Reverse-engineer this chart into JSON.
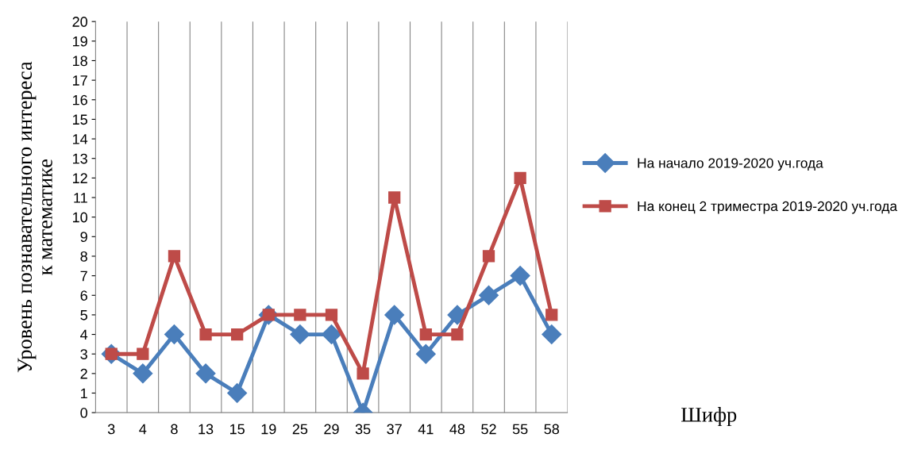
{
  "chart_data": {
    "type": "line",
    "annotations": [
      "Шифр"
    ],
    "ylabel": "Уровень познавательного интереса\nк математике",
    "categories": [
      "3",
      "4",
      "8",
      "13",
      "15",
      "19",
      "25",
      "29",
      "35",
      "37",
      "41",
      "48",
      "52",
      "55",
      "58"
    ],
    "series": [
      {
        "name": "На начало 2019-2020 уч.года",
        "color": "#4a7ebb",
        "marker": "diamond",
        "values": [
          3,
          2,
          4,
          2,
          1,
          5,
          4,
          4,
          0,
          5,
          3,
          5,
          6,
          7,
          4
        ]
      },
      {
        "name": "На конец 2 триместра 2019-2020 уч.года",
        "color": "#be4b48",
        "marker": "square",
        "values": [
          3,
          3,
          8,
          4,
          4,
          5,
          5,
          5,
          2,
          11,
          4,
          4,
          8,
          12,
          5
        ]
      }
    ],
    "ylim": [
      0,
      20
    ],
    "yticks": [
      0,
      1,
      2,
      3,
      4,
      5,
      6,
      7,
      8,
      9,
      10,
      11,
      12,
      13,
      14,
      15,
      16,
      17,
      18,
      19,
      20
    ],
    "grid": "x",
    "legend": "right",
    "line_style": "solid"
  }
}
